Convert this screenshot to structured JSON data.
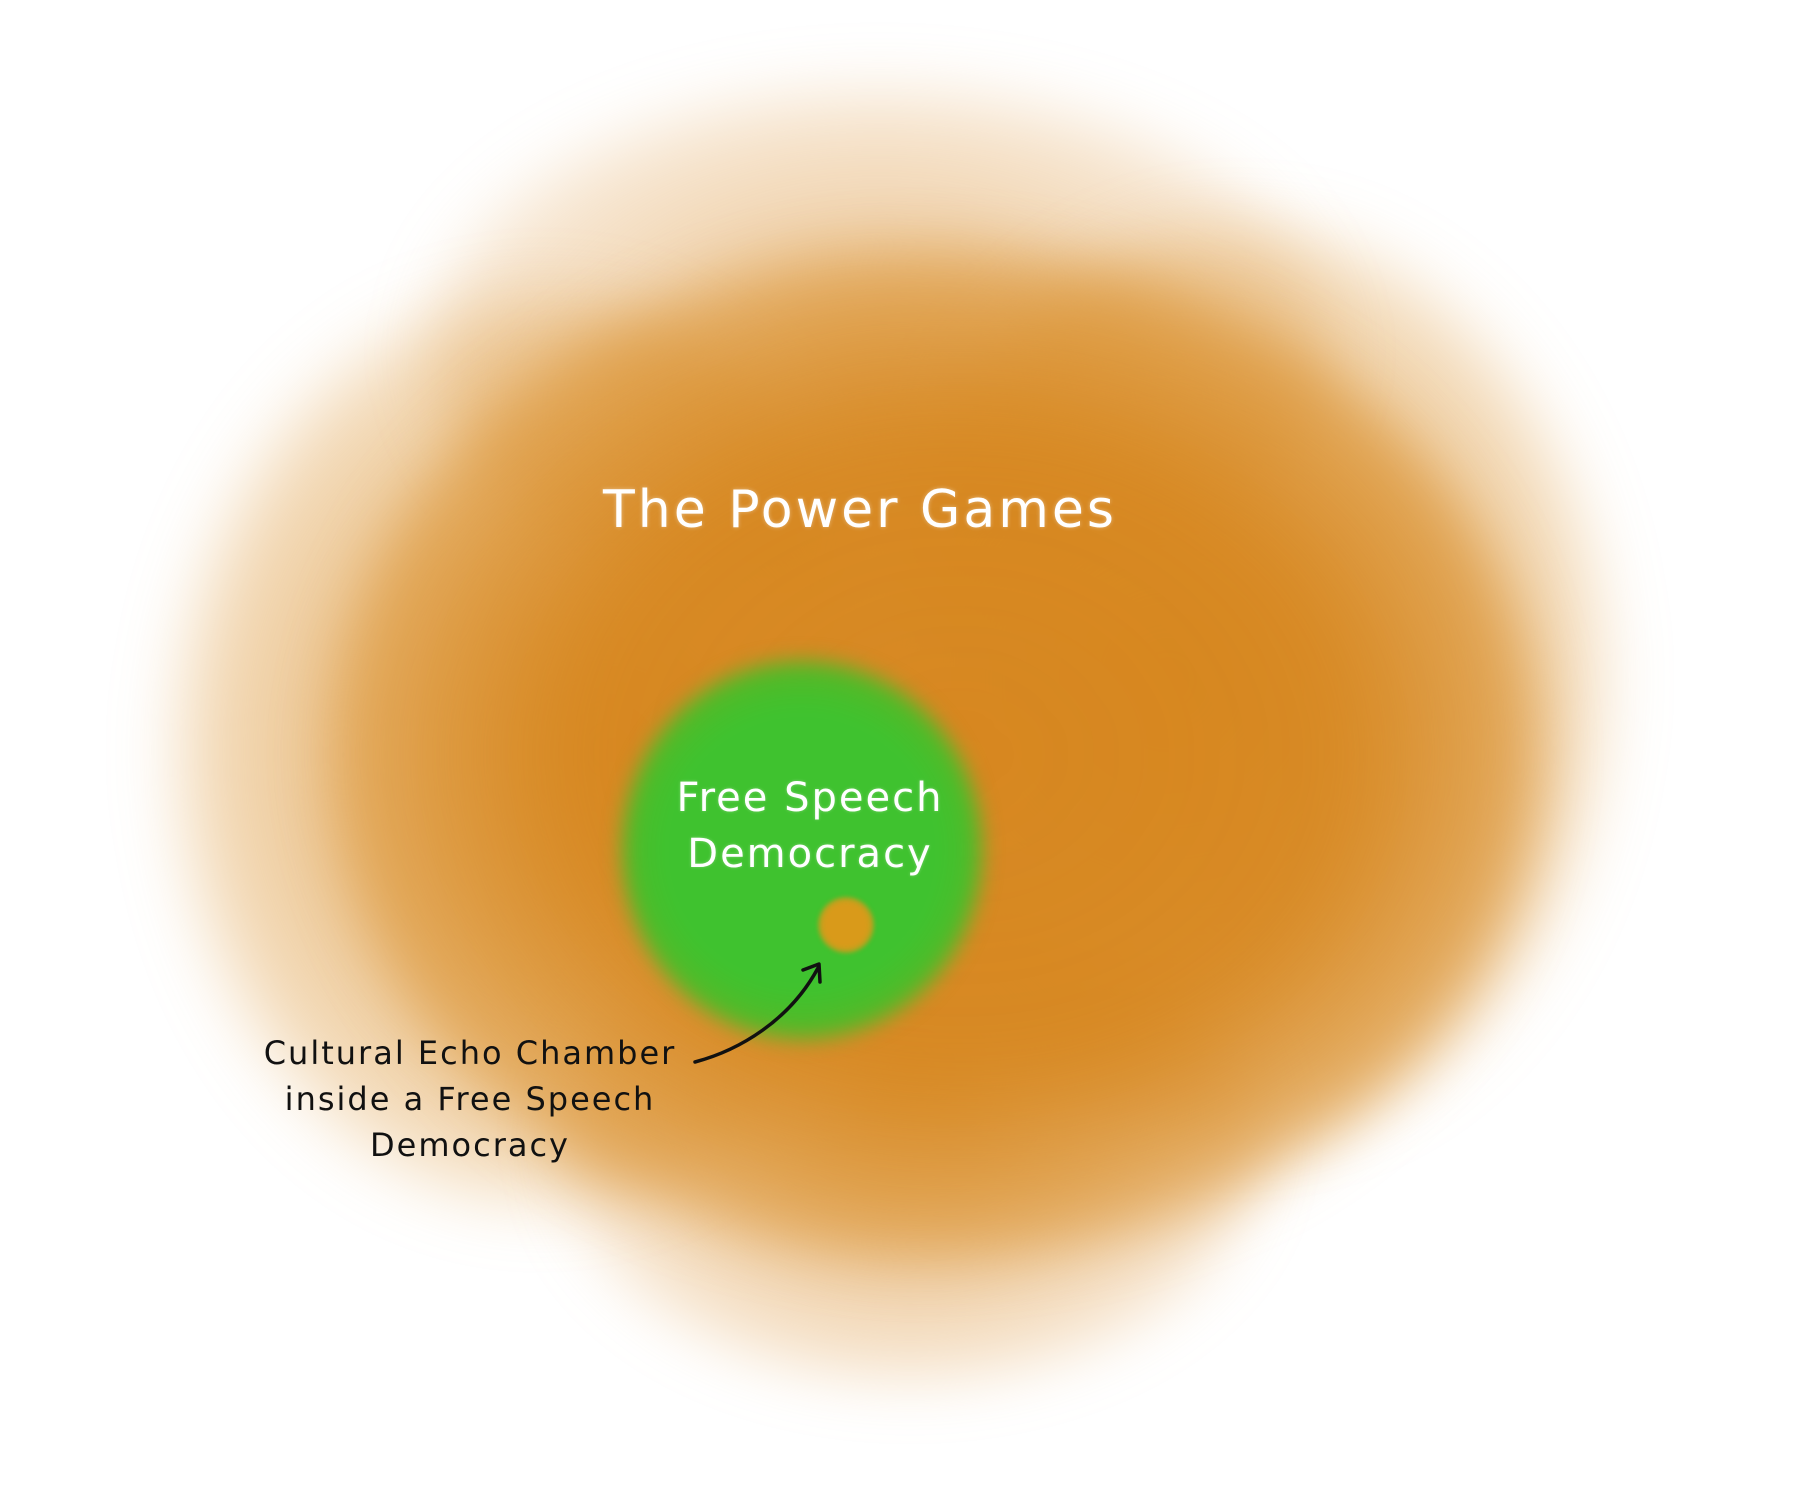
{
  "diagram": {
    "outer_region": {
      "label": "The Power Games",
      "color": "#d6861e"
    },
    "inner_region": {
      "label_line1": "Free Speech",
      "label_line2": "Democracy",
      "color": "#3fc22f"
    },
    "core_dot": {
      "color": "#d99a1a"
    },
    "annotation": {
      "line1": "Cultural Echo Chamber",
      "line2": "inside a Free Speech",
      "line3": "Democracy",
      "color": "#111111"
    }
  }
}
